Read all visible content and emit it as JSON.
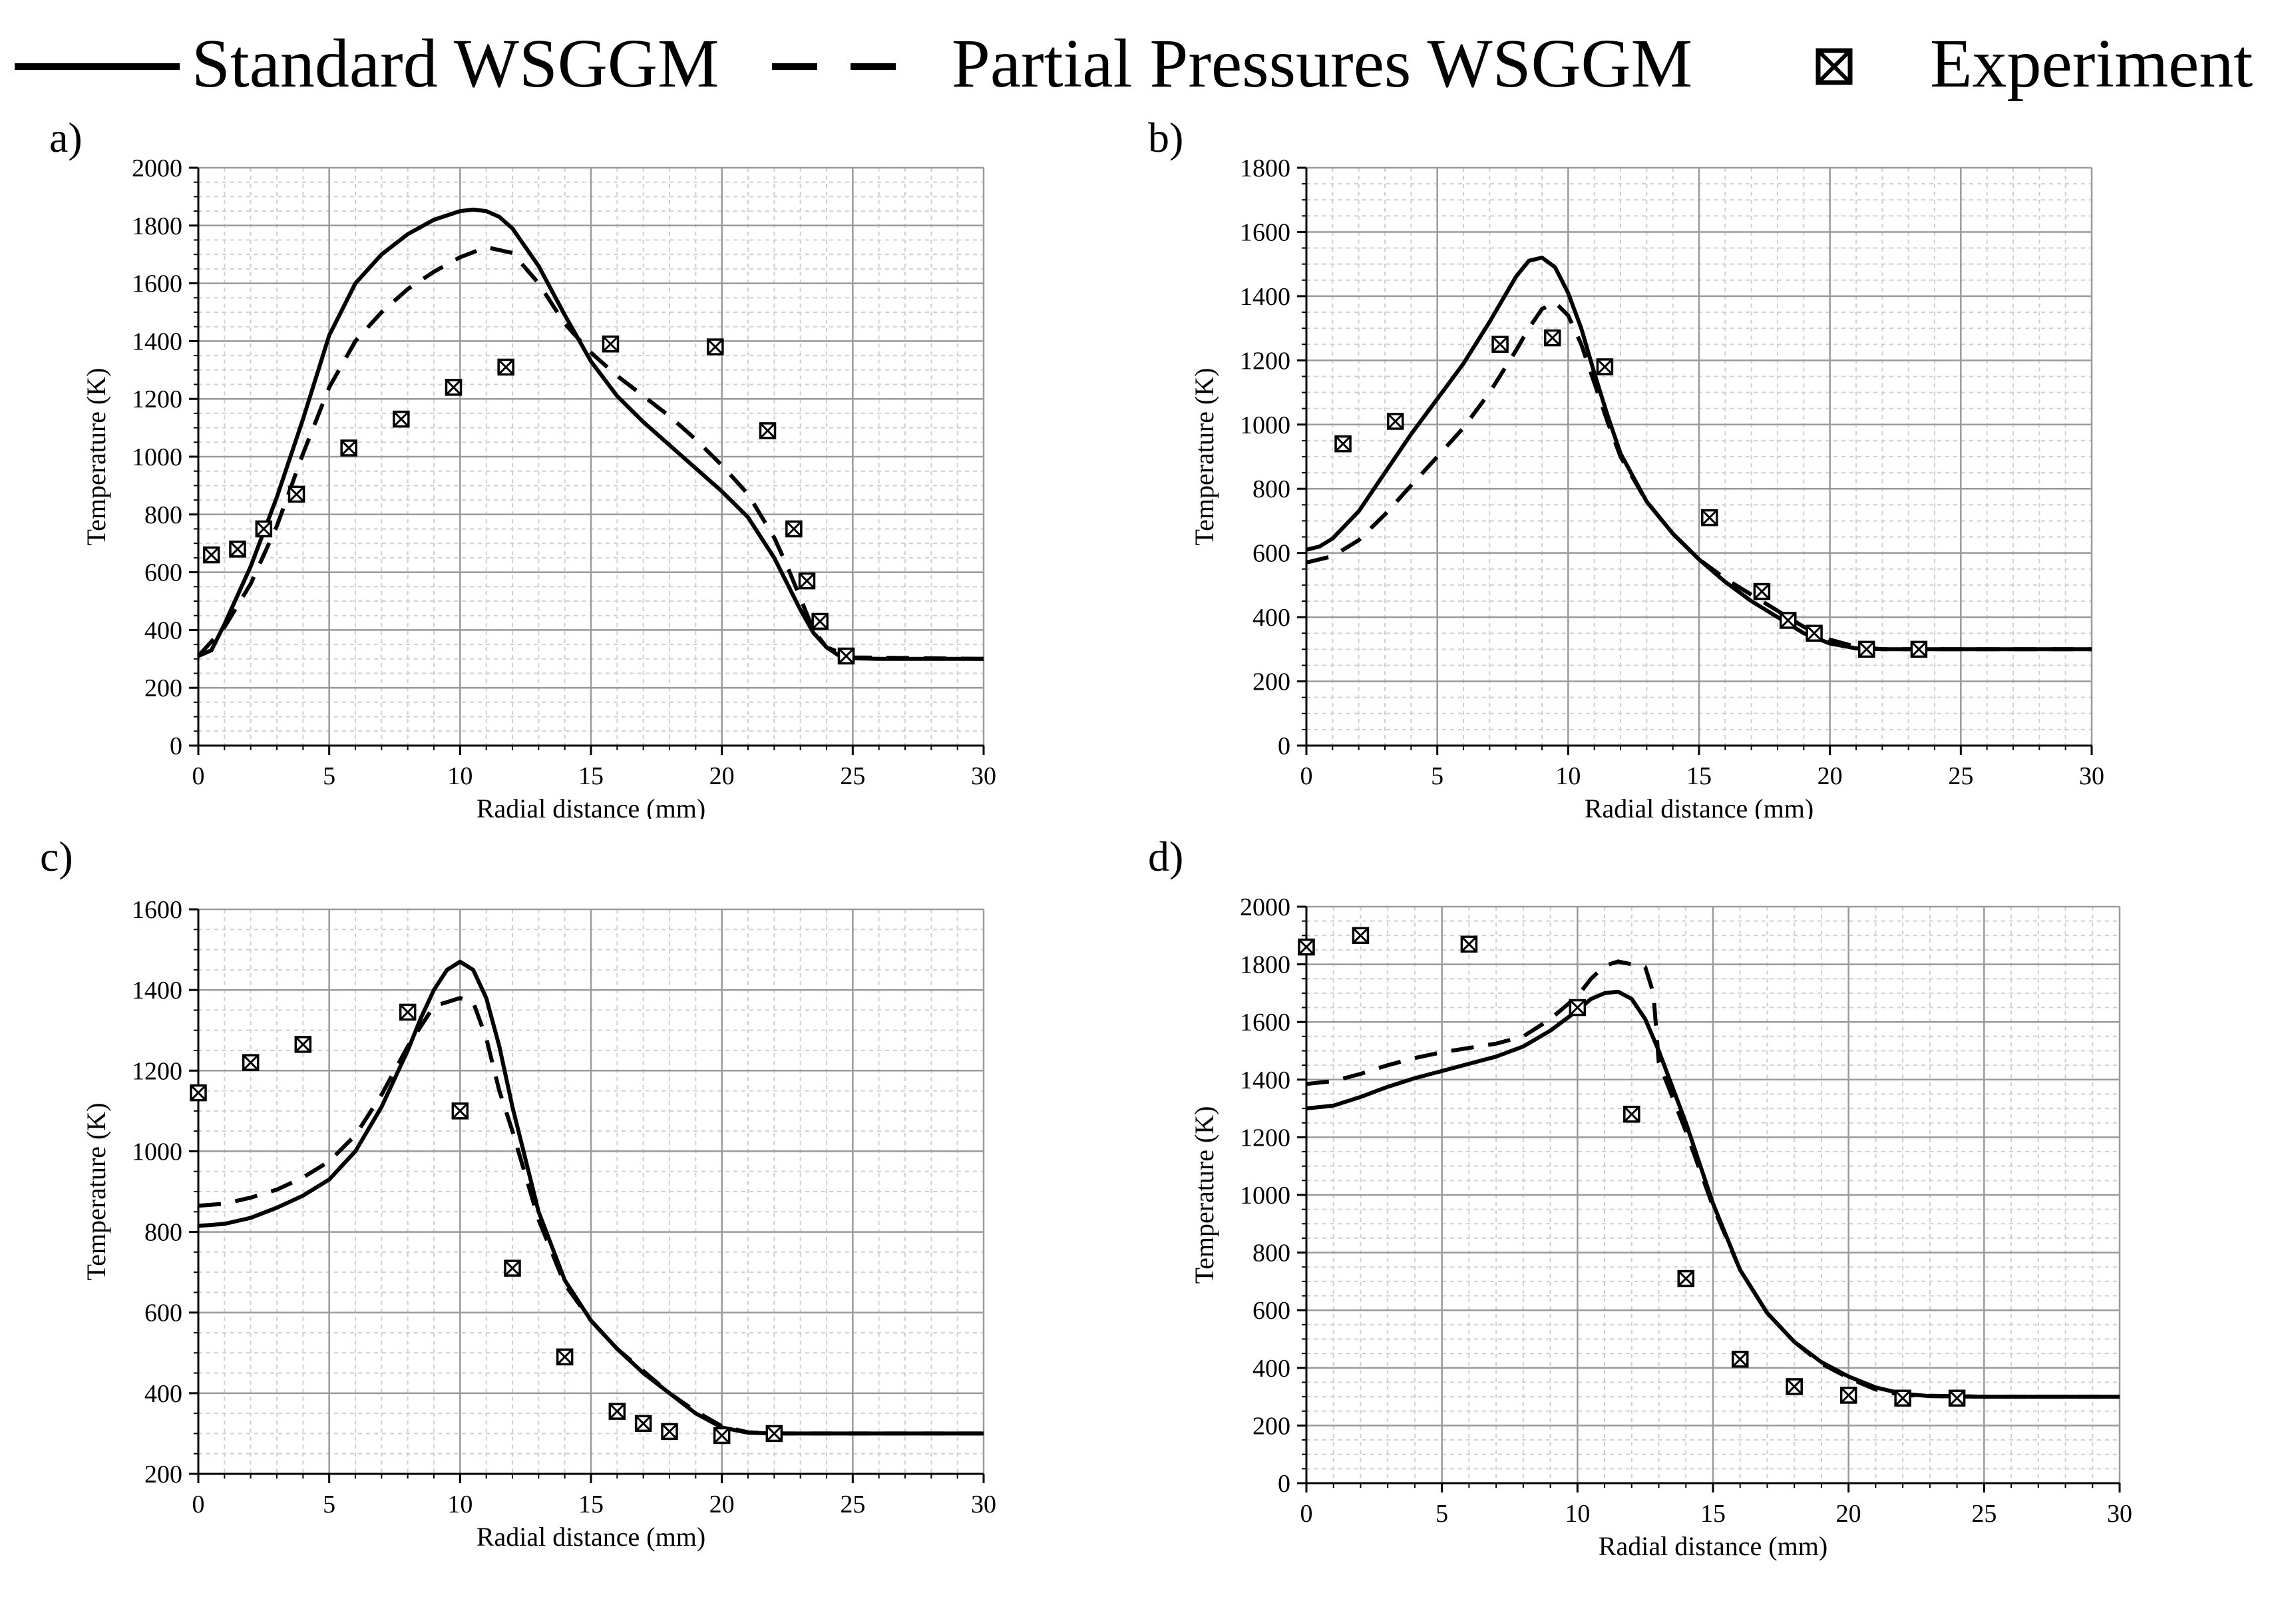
{
  "legend": {
    "standard": "Standard WSGGM",
    "partial": "Partial Pressures WSGGM",
    "experiment": "Experiment"
  },
  "chart_data": [
    {
      "type": "line",
      "panel_label": "a)",
      "xlabel": "Radial distance (mm)",
      "ylabel": "Temperature (K)",
      "xlim": [
        0,
        30
      ],
      "ylim": [
        0,
        2000
      ],
      "xticks": [
        0,
        5,
        10,
        15,
        20,
        25,
        30
      ],
      "yticks": [
        0,
        200,
        400,
        600,
        800,
        1000,
        1200,
        1400,
        1600,
        1800,
        2000
      ],
      "grid": true,
      "legend_position": "top",
      "series": [
        {
          "name": "Standard WSGGM",
          "style": "solid",
          "x": [
            0,
            0.5,
            1,
            2,
            3,
            4,
            5,
            6,
            7,
            8,
            9,
            10,
            10.5,
            11,
            11.5,
            12,
            13,
            14,
            15,
            16,
            17,
            18,
            19,
            20,
            21,
            22,
            22.5,
            23,
            23.5,
            24,
            24.5,
            25,
            26,
            28,
            30
          ],
          "y": [
            310,
            330,
            420,
            620,
            860,
            1130,
            1420,
            1600,
            1700,
            1770,
            1820,
            1850,
            1855,
            1850,
            1830,
            1790,
            1660,
            1490,
            1330,
            1210,
            1120,
            1040,
            960,
            880,
            790,
            650,
            560,
            470,
            390,
            340,
            310,
            302,
            300,
            300,
            300
          ]
        },
        {
          "name": "Partial Pressures WSGGM",
          "style": "dashed",
          "x": [
            0,
            1,
            2,
            3,
            4,
            5,
            6,
            7,
            8,
            9,
            10,
            11,
            12,
            13,
            14,
            15,
            16,
            17,
            18,
            19,
            20,
            21,
            22,
            22.5,
            23,
            23.5,
            24,
            25,
            30
          ],
          "y": [
            310,
            410,
            560,
            760,
            1010,
            1240,
            1400,
            1500,
            1580,
            1640,
            1690,
            1725,
            1705,
            1600,
            1460,
            1360,
            1280,
            1210,
            1140,
            1060,
            970,
            870,
            720,
            620,
            510,
            400,
            340,
            305,
            300
          ]
        },
        {
          "name": "Experiment",
          "style": "markers",
          "x": [
            0.5,
            1.5,
            2.5,
            3.75,
            5.75,
            7.75,
            9.75,
            11.75,
            15.75,
            19.75,
            21.75,
            22.75,
            23.25,
            23.75,
            24.75
          ],
          "y": [
            660,
            680,
            750,
            870,
            1030,
            1130,
            1240,
            1310,
            1390,
            1380,
            1090,
            750,
            570,
            430,
            310
          ]
        }
      ]
    },
    {
      "type": "line",
      "panel_label": "b)",
      "xlabel": "Radial distance (mm)",
      "ylabel": "Temperature (K)",
      "xlim": [
        0,
        30
      ],
      "ylim": [
        0,
        1800
      ],
      "xticks": [
        0,
        5,
        10,
        15,
        20,
        25,
        30
      ],
      "yticks": [
        0,
        200,
        400,
        600,
        800,
        1000,
        1200,
        1400,
        1600,
        1800
      ],
      "grid": true,
      "series": [
        {
          "name": "Standard WSGGM",
          "style": "solid",
          "x": [
            0,
            0.5,
            1,
            2,
            3,
            4,
            5,
            6,
            7,
            8,
            8.5,
            9,
            9.5,
            10,
            10.5,
            11,
            11.5,
            12,
            13,
            14,
            15,
            16,
            17,
            18,
            19,
            20,
            21,
            22,
            23,
            25,
            30
          ],
          "y": [
            610,
            620,
            645,
            730,
            850,
            970,
            1080,
            1190,
            1320,
            1460,
            1510,
            1520,
            1490,
            1410,
            1300,
            1160,
            1030,
            910,
            760,
            660,
            580,
            510,
            450,
            400,
            350,
            318,
            303,
            300,
            300,
            300,
            300
          ]
        },
        {
          "name": "Partial Pressures WSGGM",
          "style": "dashed",
          "x": [
            0,
            1,
            2,
            3,
            4,
            5,
            6,
            7,
            8,
            8.5,
            9,
            9.5,
            10,
            10.5,
            11,
            11.5,
            12,
            13,
            14,
            15,
            16,
            17,
            18,
            19,
            20,
            21,
            22,
            25,
            30
          ],
          "y": [
            570,
            590,
            640,
            720,
            810,
            900,
            990,
            1100,
            1230,
            1300,
            1360,
            1380,
            1340,
            1250,
            1130,
            1010,
            900,
            760,
            660,
            580,
            520,
            470,
            420,
            370,
            330,
            308,
            300,
            300,
            300
          ]
        },
        {
          "name": "Experiment",
          "style": "markers",
          "x": [
            1.4,
            3.4,
            7.4,
            9.4,
            11.4,
            15.4,
            17.4,
            18.4,
            19.4,
            21.4,
            23.4
          ],
          "y": [
            940,
            1010,
            1250,
            1270,
            1180,
            710,
            480,
            390,
            350,
            300,
            300
          ]
        }
      ]
    },
    {
      "type": "line",
      "panel_label": "c)",
      "xlabel": "Radial distance (mm)",
      "ylabel": "Temperature (K)",
      "xlim": [
        0,
        30
      ],
      "ylim": [
        200,
        1600
      ],
      "xticks": [
        0,
        5,
        10,
        15,
        20,
        25,
        30
      ],
      "yticks": [
        200,
        400,
        600,
        800,
        1000,
        1200,
        1400,
        1600
      ],
      "grid": true,
      "series": [
        {
          "name": "Standard WSGGM",
          "style": "solid",
          "x": [
            0,
            1,
            2,
            3,
            4,
            5,
            6,
            7,
            8,
            8.5,
            9,
            9.5,
            10,
            10.5,
            11,
            11.5,
            12,
            13,
            14,
            15,
            16,
            17,
            18,
            19,
            20,
            21,
            22,
            25,
            30
          ],
          "y": [
            815,
            820,
            835,
            860,
            890,
            930,
            1000,
            1110,
            1250,
            1330,
            1400,
            1450,
            1470,
            1450,
            1380,
            1260,
            1110,
            850,
            680,
            580,
            510,
            450,
            400,
            350,
            315,
            302,
            300,
            300,
            300
          ]
        },
        {
          "name": "Partial Pressures WSGGM",
          "style": "dashed",
          "x": [
            0,
            1,
            2,
            3,
            4,
            5,
            6,
            7,
            8,
            9,
            10,
            10.5,
            11,
            11.5,
            12,
            13,
            14,
            15,
            16,
            17,
            18,
            19,
            20,
            21,
            22,
            25,
            30
          ],
          "y": [
            865,
            870,
            885,
            905,
            935,
            975,
            1040,
            1140,
            1260,
            1360,
            1380,
            1370,
            1280,
            1150,
            1050,
            830,
            670,
            580,
            510,
            455,
            400,
            355,
            318,
            303,
            300,
            300,
            300
          ]
        },
        {
          "name": "Experiment",
          "style": "markers",
          "x": [
            0,
            2,
            4,
            8,
            10,
            12,
            14,
            16,
            17,
            18,
            20,
            22
          ],
          "y": [
            1145,
            1220,
            1265,
            1345,
            1100,
            710,
            490,
            355,
            325,
            305,
            295,
            300
          ]
        }
      ]
    },
    {
      "type": "line",
      "panel_label": "d)",
      "xlabel": "Radial distance (mm)",
      "ylabel": "Temperature (K)",
      "xlim": [
        0,
        30
      ],
      "ylim": [
        0,
        2000
      ],
      "xticks": [
        0,
        5,
        10,
        15,
        20,
        25,
        30
      ],
      "yticks": [
        0,
        200,
        400,
        600,
        800,
        1000,
        1200,
        1400,
        1600,
        1800,
        2000
      ],
      "grid": true,
      "series": [
        {
          "name": "Standard WSGGM",
          "style": "solid",
          "x": [
            0,
            1,
            2,
            3,
            4,
            5,
            6,
            7,
            8,
            9,
            10,
            10.5,
            11,
            11.5,
            12,
            12.5,
            13,
            14,
            15,
            16,
            17,
            18,
            19,
            20,
            21,
            22,
            23,
            25,
            30
          ],
          "y": [
            1300,
            1310,
            1340,
            1375,
            1405,
            1430,
            1455,
            1480,
            1515,
            1570,
            1640,
            1680,
            1700,
            1705,
            1680,
            1610,
            1500,
            1250,
            970,
            740,
            590,
            490,
            420,
            370,
            332,
            310,
            302,
            300,
            300
          ]
        },
        {
          "name": "Partial Pressures WSGGM",
          "style": "dashed",
          "x": [
            0,
            1,
            2,
            3,
            4,
            5,
            6,
            7,
            8,
            9,
            10,
            10.5,
            11,
            11.5,
            12,
            12.5,
            12.8,
            13,
            14,
            15,
            16,
            17,
            18,
            19,
            20,
            21,
            22,
            25,
            30
          ],
          "y": [
            1385,
            1395,
            1420,
            1450,
            1475,
            1495,
            1510,
            1525,
            1550,
            1610,
            1690,
            1750,
            1795,
            1810,
            1800,
            1790,
            1700,
            1460,
            1220,
            960,
            740,
            590,
            490,
            415,
            365,
            325,
            305,
            300,
            300
          ]
        },
        {
          "name": "Experiment",
          "style": "markers",
          "x": [
            0,
            2,
            6,
            10,
            12,
            14,
            16,
            18,
            20,
            22,
            24
          ],
          "y": [
            1860,
            1900,
            1870,
            1650,
            1280,
            710,
            430,
            335,
            305,
            295,
            295
          ]
        }
      ]
    }
  ]
}
